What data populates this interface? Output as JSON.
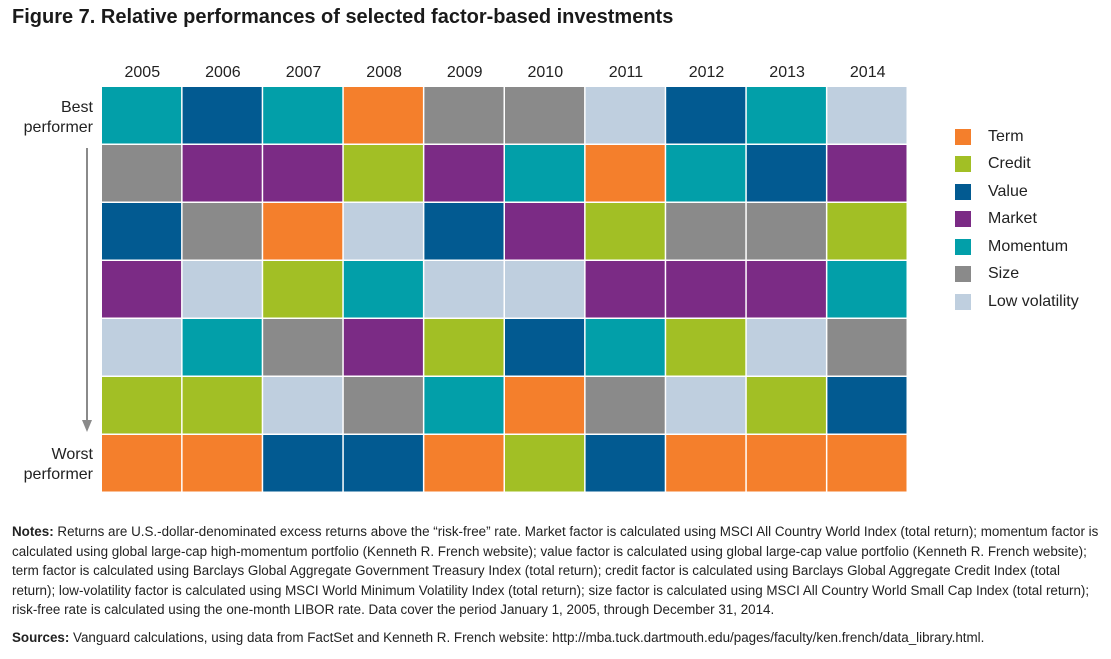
{
  "title": "Figure 7. Relative performances of selected factor-based investments",
  "chart_data": {
    "type": "table",
    "title": "Figure 7. Relative performances of selected factor-based investments",
    "years": [
      "2005",
      "2006",
      "2007",
      "2008",
      "2009",
      "2010",
      "2011",
      "2012",
      "2013",
      "2014"
    ],
    "rank_top_label": [
      "Best",
      "performer"
    ],
    "rank_bottom_label": [
      "Worst",
      "performer"
    ],
    "factors": {
      "Term": "#f47f2c",
      "Credit": "#a2bf25",
      "Value": "#025a91",
      "Market": "#7b2b85",
      "Momentum": "#029fa9",
      "Size": "#8a8a8a",
      "Low volatility": "#bfcfdf"
    },
    "ranking_by_year": {
      "2005": [
        "Momentum",
        "Size",
        "Value",
        "Market",
        "Low volatility",
        "Credit",
        "Term"
      ],
      "2006": [
        "Value",
        "Market",
        "Size",
        "Low volatility",
        "Momentum",
        "Credit",
        "Term"
      ],
      "2007": [
        "Momentum",
        "Market",
        "Term",
        "Credit",
        "Size",
        "Low volatility",
        "Value"
      ],
      "2008": [
        "Term",
        "Credit",
        "Low volatility",
        "Momentum",
        "Market",
        "Size",
        "Value"
      ],
      "2009": [
        "Size",
        "Market",
        "Value",
        "Low volatility",
        "Credit",
        "Momentum",
        "Term"
      ],
      "2010": [
        "Size",
        "Momentum",
        "Market",
        "Low volatility",
        "Value",
        "Term",
        "Credit"
      ],
      "2011": [
        "Low volatility",
        "Term",
        "Credit",
        "Market",
        "Momentum",
        "Size",
        "Value"
      ],
      "2012": [
        "Value",
        "Momentum",
        "Size",
        "Market",
        "Credit",
        "Low volatility",
        "Term"
      ],
      "2013": [
        "Momentum",
        "Value",
        "Size",
        "Market",
        "Low volatility",
        "Credit",
        "Term"
      ],
      "2014": [
        "Low volatility",
        "Market",
        "Credit",
        "Momentum",
        "Size",
        "Value",
        "Term"
      ]
    },
    "legend": [
      "Term",
      "Credit",
      "Value",
      "Market",
      "Momentum",
      "Size",
      "Low volatility"
    ],
    "legend_position": "right"
  },
  "notes": {
    "label": "Notes:",
    "text": " Returns are U.S.-dollar-denominated excess returns above the “risk-free” rate. Market factor is calculated using MSCI All Country World Index (total return); momentum factor is calculated using global large-cap high-momentum portfolio (Kenneth R. French website); value factor is calculated using global large-cap value portfolio (Kenneth R. French website); term factor is calculated using Barclays Global Aggregate Government Treasury Index (total return); credit factor is calculated using Barclays Global Aggregate Credit Index (total return); low-volatility factor is calculated using MSCI World Minimum Volatility Index (total return); size factor is calculated using MSCI All Country World Small Cap Index (total return); risk-free rate is calculated using the one-month LIBOR rate. Data cover the period January 1, 2005, through December 31, 2014."
  },
  "sources": {
    "label": "Sources:",
    "text": " Vanguard calculations, using data from FactSet and Kenneth R. French website: http://mba.tuck.dartmouth.edu/pages/faculty/ken.french/data_library.html."
  }
}
